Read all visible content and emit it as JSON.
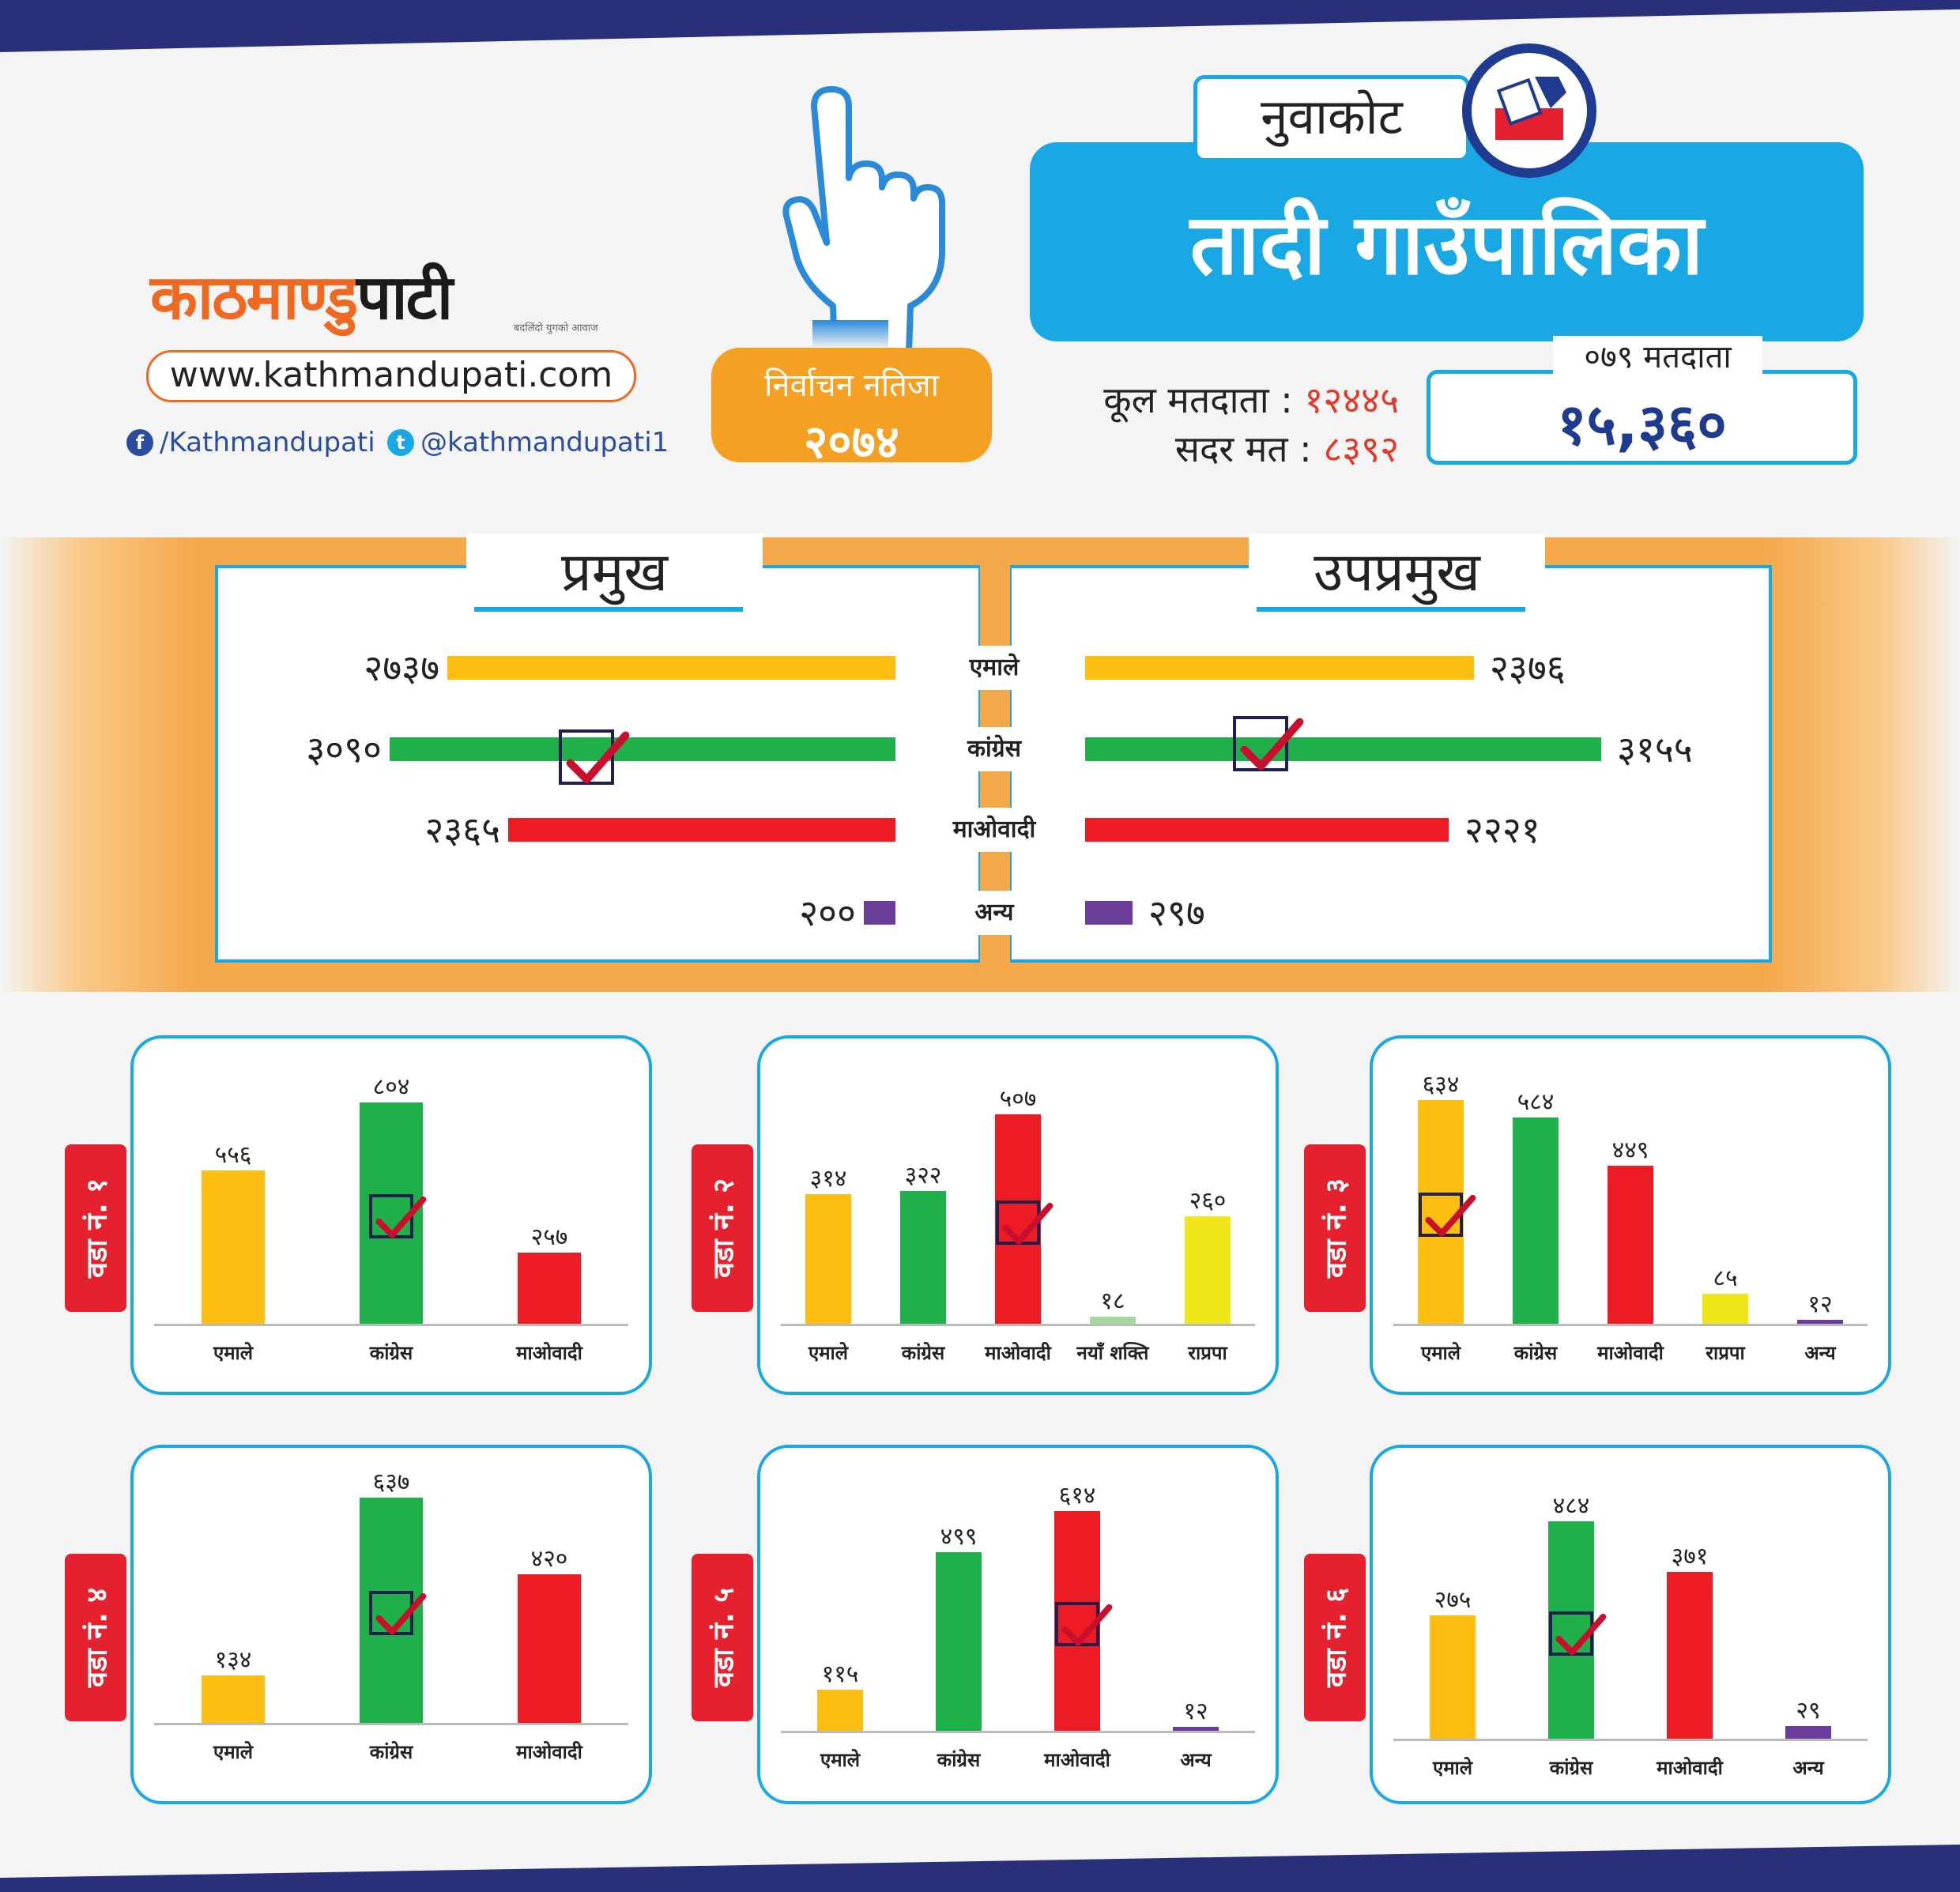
{
  "brand": {
    "logo_part1": "काठमाण्डु",
    "logo_part2": "पाटी",
    "tagline": "बदलिंदो युगको आवाज",
    "url": "www.kathmandupati.com",
    "facebook": "/Kathmandupati",
    "twitter": "@kathmandupati1",
    "facebook_icon": "facebook-icon",
    "twitter_icon": "twitter-icon",
    "accent": "#ee6a22"
  },
  "result_badge": {
    "line1": "निर्वाचन नतिजा",
    "line2": "२०७४"
  },
  "header": {
    "district": "नुवाकोट",
    "municipality": "तादी गाउँपालिका",
    "total_voters_label": "कूल मतदाता :",
    "total_voters_value": "१२४४५",
    "valid_votes_label": "सदर मत :",
    "valid_votes_value": "८३९२",
    "voters_079_label": "०७९ मतदाता",
    "voters_079_value": "१५,३६०"
  },
  "colors": {
    "एमाले": "#fcbf11",
    "कांग्रेस": "#1fb04b",
    "माओवादी": "#ed1c24",
    "अन्य": "#6a3d9a",
    "नयाँ शक्ति": "#a5d99a",
    "राप्रपा": "#f0e516",
    "blue": "#1aa8e5",
    "check": "#c8102e"
  },
  "chart_data": [
    {
      "type": "bar",
      "orientation": "horizontal",
      "title": "प्रमुख",
      "categories": [
        "एमाले",
        "कांग्रेस",
        "माओवादी",
        "अन्य"
      ],
      "values": [
        2737,
        3090,
        2365,
        200
      ],
      "labels": [
        "२७३७",
        "३०९०",
        "२३६५",
        "२००"
      ],
      "winner": "कांग्रेस"
    },
    {
      "type": "bar",
      "orientation": "horizontal",
      "title": "उपप्रमुख",
      "categories": [
        "एमाले",
        "कांग्रेस",
        "माओवादी",
        "अन्य"
      ],
      "values": [
        2376,
        3155,
        2221,
        297
      ],
      "labels": [
        "२३७६",
        "३१५५",
        "२२२१",
        "२९७"
      ],
      "winner": "कांग्रेस"
    },
    {
      "type": "bar",
      "title": "वडा नं. १",
      "categories": [
        "एमाले",
        "कांग्रेस",
        "माओवादी"
      ],
      "values": [
        556,
        804,
        257
      ],
      "labels": [
        "५५६",
        "८०४",
        "२५७"
      ],
      "winner": "कांग्रेस"
    },
    {
      "type": "bar",
      "title": "वडा नं. २",
      "categories": [
        "एमाले",
        "कांग्रेस",
        "माओवादी",
        "नयाँ शक्ति",
        "राप्रपा"
      ],
      "values": [
        314,
        322,
        507,
        18,
        260
      ],
      "labels": [
        "३१४",
        "३२२",
        "५०७",
        "१८",
        "२६०"
      ],
      "winner": "माओवादी"
    },
    {
      "type": "bar",
      "title": "वडा नं. ३",
      "categories": [
        "एमाले",
        "कांग्रेस",
        "माओवादी",
        "राप्रपा",
        "अन्य"
      ],
      "values": [
        634,
        584,
        449,
        85,
        12
      ],
      "labels": [
        "६३४",
        "५८४",
        "४४९",
        "८५",
        "१२"
      ],
      "winner": "एमाले"
    },
    {
      "type": "bar",
      "title": "वडा नं. ४",
      "categories": [
        "एमाले",
        "कांग्रेस",
        "माओवादी"
      ],
      "values": [
        134,
        637,
        420
      ],
      "labels": [
        "१३४",
        "६३७",
        "४२०"
      ],
      "winner": "कांग्रेस"
    },
    {
      "type": "bar",
      "title": "वडा नं. ५",
      "categories": [
        "एमाले",
        "कांग्रेस",
        "माओवादी",
        "अन्य"
      ],
      "values": [
        115,
        499,
        614,
        12
      ],
      "labels": [
        "११५",
        "४९९",
        "६१४",
        "१२"
      ],
      "winner": "माओवादी"
    },
    {
      "type": "bar",
      "title": "वडा नं. ६",
      "categories": [
        "एमाले",
        "कांग्रेस",
        "माओवादी",
        "अन्य"
      ],
      "values": [
        275,
        484,
        371,
        29
      ],
      "labels": [
        "२७५",
        "४८४",
        "३७१",
        "२९"
      ],
      "winner": "कांग्रेस"
    }
  ]
}
